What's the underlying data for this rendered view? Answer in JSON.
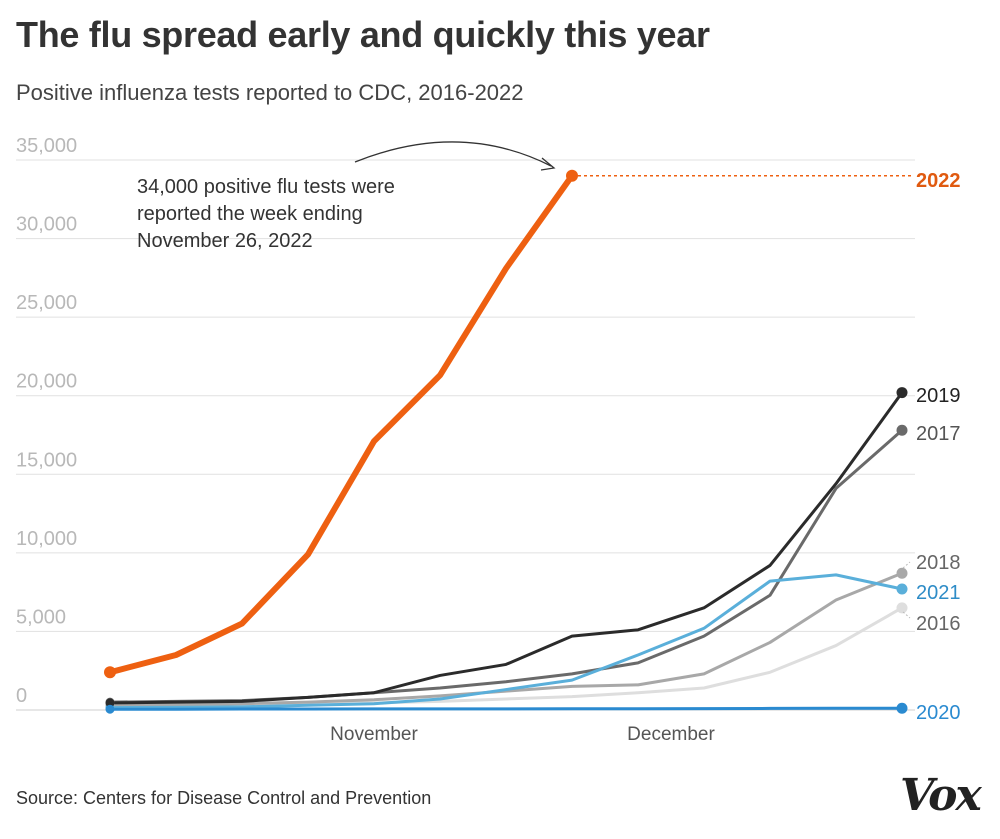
{
  "header": {
    "title": "The flu spread early and quickly this year",
    "subtitle": "Positive influenza tests reported to CDC, 2016-2022"
  },
  "footer": {
    "source": "Source: Centers for Disease Control and Prevention",
    "logo": "Vox"
  },
  "annotation": {
    "lines": [
      "34,000 positive flu tests were",
      "reported the week ending",
      "November 26, 2022"
    ]
  },
  "chart_data": {
    "type": "line",
    "title": "The flu spread early and quickly this year",
    "subtitle": "Positive influenza tests reported to CDC, 2016-2022",
    "ylim": [
      0,
      35000
    ],
    "y_ticks": [
      0,
      5000,
      10000,
      15000,
      20000,
      25000,
      30000,
      35000
    ],
    "y_tick_labels": [
      "0",
      "5,000",
      "10,000",
      "15,000",
      "20,000",
      "25,000",
      "30,000",
      "35,000"
    ],
    "x_tick_labels": [
      {
        "label": "November",
        "week": 4
      },
      {
        "label": "December",
        "week": 8.5
      }
    ],
    "grid": true,
    "series": [
      {
        "name": "2016",
        "color": "#dedede",
        "width": 3,
        "label_color": "#666",
        "bold": false,
        "values": [
          300,
          320,
          350,
          400,
          450,
          550,
          700,
          850,
          1100,
          1400,
          2400,
          4100,
          6500
        ]
      },
      {
        "name": "2018",
        "color": "#a8a8a8",
        "width": 3,
        "label_color": "#666",
        "bold": false,
        "values": [
          300,
          330,
          400,
          500,
          650,
          900,
          1200,
          1500,
          1600,
          2300,
          4300,
          7000,
          8700
        ]
      },
      {
        "name": "2017",
        "color": "#6a6a6a",
        "width": 3,
        "label_color": "#555",
        "bold": false,
        "values": [
          500,
          550,
          600,
          800,
          1100,
          1400,
          1800,
          2300,
          3000,
          4700,
          7300,
          14100,
          17800
        ]
      },
      {
        "name": "2021",
        "color": "#5aafda",
        "width": 3,
        "label_color": "#2e8cc7",
        "bold": false,
        "values": [
          150,
          170,
          200,
          300,
          400,
          700,
          1300,
          1900,
          3500,
          5200,
          8200,
          8600,
          7700
        ]
      },
      {
        "name": "2019",
        "color": "#2b2b2b",
        "width": 3,
        "label_color": "#222",
        "bold": false,
        "values": [
          450,
          500,
          550,
          800,
          1100,
          2200,
          2900,
          4700,
          5100,
          6500,
          9200,
          14400,
          20200
        ]
      },
      {
        "name": "2020",
        "color": "#2a8ad0",
        "width": 3,
        "label_color": "#2a8ad0",
        "bold": false,
        "values": [
          50,
          50,
          60,
          60,
          70,
          70,
          70,
          80,
          80,
          90,
          100,
          110,
          110
        ]
      },
      {
        "name": "2022",
        "color": "#ee6011",
        "width": 6,
        "label_color": "#e05a10",
        "bold": true,
        "values": [
          2400,
          3500,
          5500,
          9900,
          17100,
          21300,
          28100,
          34000
        ]
      }
    ]
  }
}
